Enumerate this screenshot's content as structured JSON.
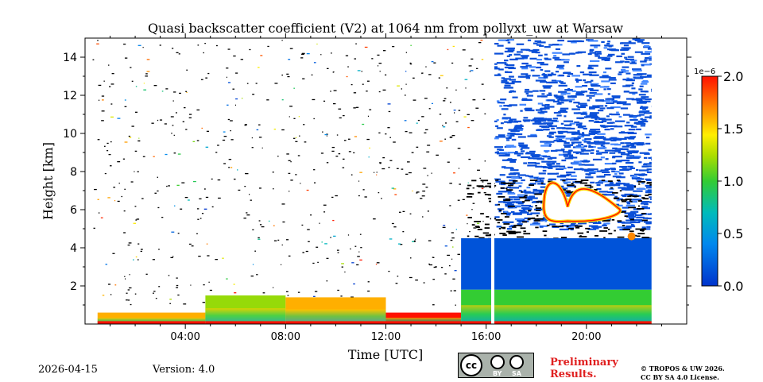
{
  "chart_data": {
    "type": "heatmap",
    "title": "Quasi backscatter coefficient (V2) at 1064 nm from pollyxt_uw at Warsaw",
    "xlabel": "Time [UTC]",
    "ylabel": "Height [km]",
    "x_range_hours": [
      0,
      24
    ],
    "y_range_km": [
      0,
      15
    ],
    "x_ticks": [
      {
        "value": 4,
        "label": "04:00"
      },
      {
        "value": 8,
        "label": "08:00"
      },
      {
        "value": 12,
        "label": "12:00"
      },
      {
        "value": 16,
        "label": "16:00"
      },
      {
        "value": 20,
        "label": "20:00"
      }
    ],
    "y_ticks": [
      {
        "value": 2,
        "label": "2"
      },
      {
        "value": 4,
        "label": "4"
      },
      {
        "value": 6,
        "label": "6"
      },
      {
        "value": 8,
        "label": "8"
      },
      {
        "value": 10,
        "label": "10"
      },
      {
        "value": 12,
        "label": "12"
      },
      {
        "value": 14,
        "label": "14"
      }
    ],
    "colorbar": {
      "range": [
        0.0,
        2.0
      ],
      "exponent_label": "1e−6",
      "ticks": [
        {
          "value": 0.0,
          "label": "0.0"
        },
        {
          "value": 0.5,
          "label": "0.5"
        },
        {
          "value": 1.0,
          "label": "1.0"
        },
        {
          "value": 1.5,
          "label": "1.5"
        },
        {
          "value": 2.0,
          "label": "2.0"
        }
      ]
    },
    "features": {
      "boundary_layer": [
        {
          "start_h": 0.5,
          "end_h": 4.8,
          "top_km": 0.6,
          "value": 1.6
        },
        {
          "start_h": 4.8,
          "end_h": 8.0,
          "top_km": 1.5,
          "value": 1.2
        },
        {
          "start_h": 8.0,
          "end_h": 12.0,
          "top_km": 1.4,
          "value": 1.6
        },
        {
          "start_h": 12.0,
          "end_h": 15.0,
          "top_km": 0.6,
          "value": 2.0
        },
        {
          "start_h": 15.0,
          "end_h": 22.6,
          "top_km": 1.8,
          "value": 1.0
        }
      ],
      "aerosol_layer": {
        "start_h": 15.0,
        "end_h": 22.6,
        "bottom_km": 1.8,
        "top_km": 4.5,
        "value": 0.15
      },
      "cirrus": {
        "start_h": 16.3,
        "end_h": 22.6,
        "bottom_km": 5.0,
        "top_km": 15.0,
        "value": 0.1
      },
      "cloud": {
        "start_h": 18.3,
        "end_h": 21.6,
        "bottom_km": 5.4,
        "top_km": 7.7,
        "value": 2.0
      },
      "data_gap_h": 16.2,
      "data_end_h": 22.6
    }
  },
  "footer": {
    "date": "2026-04-15",
    "version": "Version: 4.0",
    "license_badge": {
      "cc": "cc",
      "by": "BY",
      "sa": "SA"
    },
    "preliminary_line1": "Preliminary",
    "preliminary_line2": "Results.",
    "copyright_line1": "© TROPOS & UW 2026.",
    "copyright_line2": "CC BY SA 4.0 License."
  }
}
